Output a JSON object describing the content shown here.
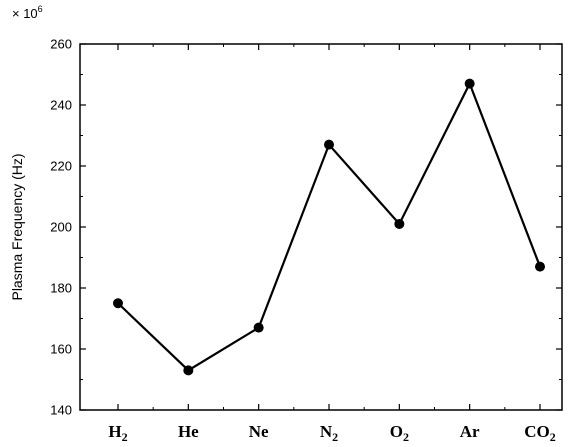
{
  "chart_data": {
    "type": "line",
    "categories": [
      "H",
      "He",
      "Ne",
      "N",
      "O",
      "Ar",
      "CO"
    ],
    "category_subscripts": [
      "2",
      "",
      "",
      "2",
      "2",
      "",
      "2"
    ],
    "series": [
      {
        "values": [
          175,
          153,
          167,
          227,
          201,
          247,
          187
        ]
      }
    ],
    "ylabel": "Plasma Frequency (Hz)",
    "xlabel": "",
    "y_multiplier": {
      "base": "× 10",
      "exponent": "6"
    },
    "ylim": [
      140,
      260
    ],
    "yticks": [
      140,
      160,
      180,
      200,
      220,
      240,
      260
    ],
    "grid": false,
    "line_color": "#000000",
    "marker_color": "#000000"
  }
}
